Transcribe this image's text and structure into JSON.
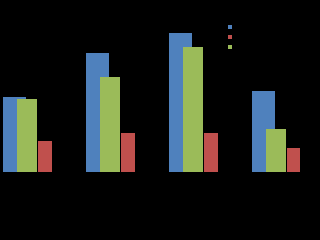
{
  "chart_data": {
    "type": "bar",
    "categories": [
      null,
      null,
      null,
      null
    ],
    "series": [
      {
        "color": "#4f81bd",
        "values": [
          75,
          119,
          139,
          81
        ]
      },
      {
        "color": "#c0504d",
        "values": [
          31,
          39,
          39,
          24
        ]
      },
      {
        "color": "#9bbb59",
        "values": [
          73,
          95,
          125,
          43
        ]
      }
    ],
    "ylim": [
      0,
      150
    ]
  }
}
